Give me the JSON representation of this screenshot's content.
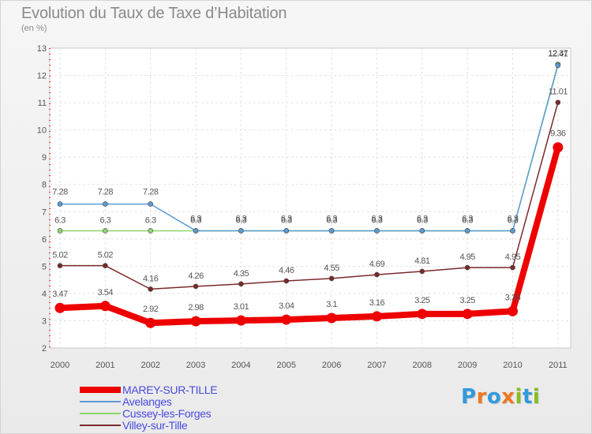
{
  "title": "Evolution du Taux de Taxe d’Habitation",
  "subtitle": "(en %)",
  "chart_data": {
    "type": "line",
    "title": "Evolution du Taux de Taxe d’Habitation",
    "ylabel": "(en %)",
    "xlabel": "",
    "ylim": [
      2,
      13
    ],
    "yticks": [
      "2",
      "3",
      "4",
      "5",
      "6",
      "7",
      "8",
      "9",
      "10",
      "11",
      "12",
      "13"
    ],
    "categories": [
      "2000",
      "2001",
      "2002",
      "2003",
      "2004",
      "2005",
      "2006",
      "2007",
      "2008",
      "2009",
      "2010",
      "2011"
    ],
    "grid": true,
    "series": [
      {
        "name": "MAREY-SUR-TILLE",
        "color": "#ee0000",
        "values": [
          3.47,
          3.54,
          2.92,
          2.98,
          3.01,
          3.04,
          3.1,
          3.16,
          3.25,
          3.25,
          3.35,
          9.36
        ],
        "labels": [
          "3.47",
          "3.54",
          "2.92",
          "2.98",
          "3.01",
          "3.04",
          "3.1",
          "3.16",
          "3.25",
          "3.25",
          "3.35",
          "9.36"
        ]
      },
      {
        "name": "Avelanges",
        "color": "#5b9bd5",
        "values": [
          7.28,
          7.28,
          7.28,
          6.3,
          6.3,
          6.3,
          6.3,
          6.3,
          6.3,
          6.3,
          6.3,
          12.37
        ],
        "labels": [
          "7.28",
          "7.28",
          "7.28",
          "6.3",
          "6.3",
          "6.3",
          "6.3",
          "6.3",
          "6.3",
          "6.3",
          "6.3",
          "12.37"
        ]
      },
      {
        "name": "Cussey-les-Forges",
        "color": "#8ed46b",
        "values": [
          6.3,
          6.3,
          6.3,
          6.3,
          6.3,
          6.3,
          6.3,
          6.3,
          6.3,
          6.3,
          6.3,
          12.41
        ],
        "labels": [
          "6.3",
          "6.3",
          "6.3",
          "6.3",
          "6.3",
          "6.3",
          "6.3",
          "6.3",
          "6.3",
          "6.3",
          "6.3",
          "12.41"
        ]
      },
      {
        "name": "Villey-sur-Tille",
        "color": "#7a2a2a",
        "values": [
          5.02,
          5.02,
          4.16,
          4.26,
          4.35,
          4.46,
          4.55,
          4.69,
          4.81,
          4.95,
          4.95,
          11.01
        ],
        "labels": [
          "5.02",
          "5.02",
          "4.16",
          "4.26",
          "4.35",
          "4.46",
          "4.55",
          "4.69",
          "4.81",
          "4.95",
          "4.95",
          "11.01"
        ]
      }
    ]
  },
  "logo": {
    "text": "Proxiti",
    "colors": [
      "#3399dd",
      "#ee7722",
      "#3399dd",
      "#ee7722",
      "#88bb22",
      "#3399dd",
      "#88bb22"
    ]
  }
}
